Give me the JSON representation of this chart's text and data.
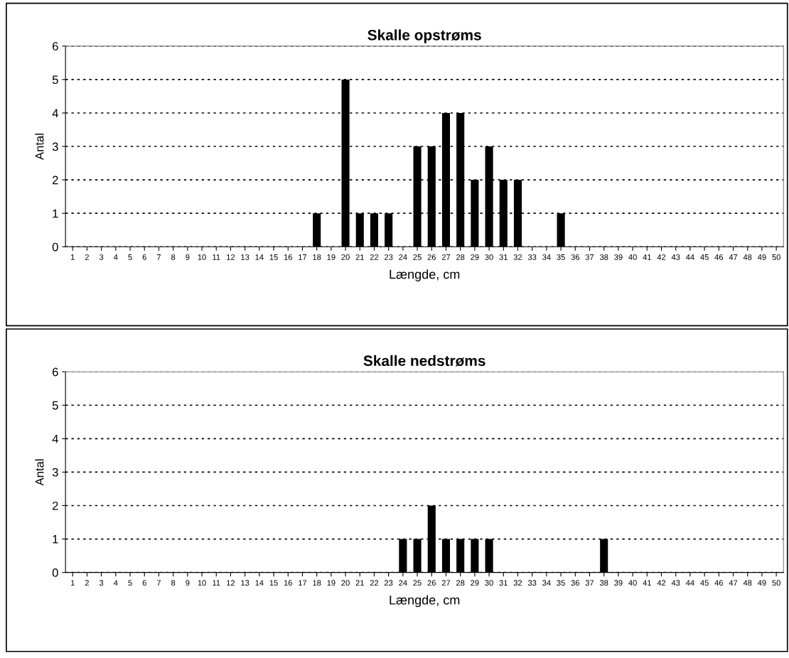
{
  "chart_data": [
    {
      "type": "bar",
      "title": "Skalle opstrøms",
      "xlabel": "Længde, cm",
      "ylabel": "Antal",
      "categories": [
        "1",
        "2",
        "3",
        "4",
        "5",
        "6",
        "7",
        "8",
        "9",
        "10",
        "11",
        "12",
        "13",
        "14",
        "15",
        "16",
        "17",
        "18",
        "19",
        "20",
        "21",
        "22",
        "23",
        "24",
        "25",
        "26",
        "27",
        "28",
        "29",
        "30",
        "31",
        "32",
        "33",
        "34",
        "35",
        "36",
        "37",
        "38",
        "39",
        "40",
        "41",
        "42",
        "43",
        "44",
        "45",
        "46",
        "47",
        "48",
        "49",
        "50"
      ],
      "values": [
        0,
        0,
        0,
        0,
        0,
        0,
        0,
        0,
        0,
        0,
        0,
        0,
        0,
        0,
        0,
        0,
        0,
        1,
        0,
        5,
        1,
        1,
        1,
        0,
        3,
        3,
        4,
        4,
        2,
        3,
        2,
        2,
        0,
        0,
        1,
        0,
        0,
        0,
        0,
        0,
        0,
        0,
        0,
        0,
        0,
        0,
        0,
        0,
        0,
        0
      ],
      "color": "#000000",
      "ylim": [
        0,
        6
      ],
      "yticks": [
        0,
        1,
        2,
        3,
        4,
        5,
        6
      ],
      "grid": "y",
      "legend": false
    },
    {
      "type": "bar",
      "title": "Skalle nedstrøms",
      "xlabel": "Længde, cm",
      "ylabel": "Antal",
      "categories": [
        "1",
        "2",
        "3",
        "4",
        "5",
        "6",
        "7",
        "8",
        "9",
        "10",
        "11",
        "12",
        "13",
        "14",
        "15",
        "16",
        "17",
        "18",
        "19",
        "20",
        "21",
        "22",
        "23",
        "24",
        "25",
        "26",
        "27",
        "28",
        "29",
        "30",
        "31",
        "32",
        "33",
        "34",
        "35",
        "36",
        "37",
        "38",
        "39",
        "40",
        "41",
        "42",
        "43",
        "44",
        "45",
        "46",
        "47",
        "48",
        "49",
        "50"
      ],
      "values": [
        0,
        0,
        0,
        0,
        0,
        0,
        0,
        0,
        0,
        0,
        0,
        0,
        0,
        0,
        0,
        0,
        0,
        0,
        0,
        0,
        0,
        0,
        0,
        1,
        1,
        2,
        1,
        1,
        1,
        1,
        0,
        0,
        0,
        0,
        0,
        0,
        0,
        1,
        0,
        0,
        0,
        0,
        0,
        0,
        0,
        0,
        0,
        0,
        0,
        0
      ],
      "color": "#000000",
      "ylim": [
        0,
        6
      ],
      "yticks": [
        0,
        1,
        2,
        3,
        4,
        5,
        6
      ],
      "grid": "y",
      "legend": false
    }
  ]
}
